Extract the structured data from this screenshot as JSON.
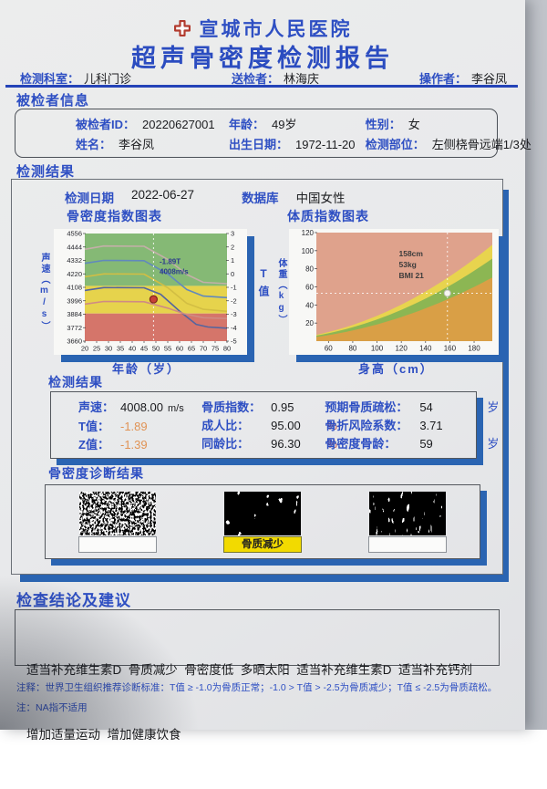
{
  "colors": {
    "accent_blue": "#2e4fc3",
    "shadow_blue": "#2a64b2",
    "highlight_yellow": "#f2da00",
    "alert_orange": "#e09355",
    "percent_red": "#b5342c",
    "logo_red": "#b23b2e"
  },
  "header": {
    "hospital": "宣城市人民医院",
    "title": "超声骨密度检测报告",
    "department_label": "检测科室：",
    "department": "儿科门诊",
    "sender_label": "送检者：",
    "sender": "林海庆",
    "operator_label": "操作者：",
    "operator": "李谷凤"
  },
  "patient": {
    "section_title": "被检者信息",
    "fields": [
      {
        "label": "被检者ID：",
        "value": "20220627001"
      },
      {
        "label": "年龄：",
        "value": "49岁"
      },
      {
        "label": "性别：",
        "value": "女"
      },
      {
        "label": "姓名：",
        "value": "李谷凤"
      },
      {
        "label": "出生日期：",
        "value": "1972-11-20"
      },
      {
        "label": "检测部位：",
        "value": "左侧桡骨远端1/3处"
      }
    ]
  },
  "results": {
    "section_title": "检测结果",
    "date_label": "检测日期",
    "date": "2022-06-27",
    "database_label": "数据库",
    "database": "中国女性"
  },
  "chart_data": [
    {
      "type": "line",
      "title": "骨密度指数图表",
      "xlabel": "年龄（岁）",
      "ylabel_left": "声速（m/s）",
      "ylabel_right": "T值",
      "xlim": [
        20,
        80
      ],
      "ylim": [
        3660,
        4556
      ],
      "xticks": [
        20,
        25,
        30,
        35,
        40,
        45,
        50,
        55,
        60,
        65,
        70,
        75,
        80
      ],
      "yticks": [
        4556,
        4444,
        4332,
        4220,
        4108,
        3996,
        3884,
        3772,
        3660
      ],
      "right_ticks": [
        3,
        2,
        1,
        0,
        -1,
        -2,
        -3,
        -4,
        -5
      ],
      "zones": [
        {
          "from": 4120,
          "to": 4556,
          "color": "#85b975"
        },
        {
          "from": 3890,
          "to": 4120,
          "color": "#e6d34c"
        },
        {
          "from": 3660,
          "to": 3890,
          "color": "#d5756a"
        }
      ],
      "series": [
        {
          "name": "+2SD",
          "color": "#c3afa8",
          "points": [
            [
              20,
              4425
            ],
            [
              28,
              4452
            ],
            [
              45,
              4450
            ],
            [
              55,
              4340
            ],
            [
              63,
              4215
            ],
            [
              70,
              4150
            ],
            [
              80,
              4138
            ]
          ]
        },
        {
          "name": "+1SD",
          "color": "#6189bd",
          "points": [
            [
              20,
              4308
            ],
            [
              28,
              4332
            ],
            [
              45,
              4330
            ],
            [
              55,
              4220
            ],
            [
              63,
              4090
            ],
            [
              70,
              4035
            ],
            [
              80,
              4022
            ]
          ]
        },
        {
          "name": "mean",
          "color": "#d2be43",
          "points": [
            [
              20,
              4195
            ],
            [
              28,
              4220
            ],
            [
              45,
              4218
            ],
            [
              55,
              4105
            ],
            [
              63,
              3975
            ],
            [
              70,
              3925
            ],
            [
              80,
              3908
            ]
          ]
        },
        {
          "name": "-1SD",
          "color": "#54659f",
          "points": [
            [
              20,
              4082
            ],
            [
              28,
              4106
            ],
            [
              45,
              4104
            ],
            [
              52,
              4050
            ],
            [
              60,
              3910
            ],
            [
              67,
              3800
            ],
            [
              72,
              3778
            ],
            [
              80,
              3768
            ]
          ]
        },
        {
          "name": "-2SD",
          "color": "#cf8b84",
          "points": [
            [
              20,
              3968
            ],
            [
              28,
              3990
            ],
            [
              45,
              3988
            ],
            [
              55,
              3935
            ],
            [
              62,
              3888
            ],
            [
              70,
              3855
            ],
            [
              80,
              3848
            ]
          ]
        }
      ],
      "point": {
        "x": 49,
        "y": 4008,
        "color": "#c84136"
      },
      "annotation": [
        "-1.89T",
        "4008m/s"
      ]
    },
    {
      "type": "area",
      "title": "体质指数图表",
      "xlabel": "身高（cm）",
      "ylabel": "体重（kg）",
      "xlim": [
        50,
        195
      ],
      "ylim": [
        0,
        120
      ],
      "xticks": [
        60,
        80,
        100,
        120,
        140,
        160,
        180
      ],
      "yticks": [
        20,
        40,
        60,
        80,
        100,
        120
      ],
      "background_color": "#dfa28c",
      "bmi_bands": [
        {
          "bmi": 28,
          "color": "#e8d44e"
        },
        {
          "bmi": 24,
          "color": "#8cb653"
        },
        {
          "bmi": 18.5,
          "color": "#d99f46"
        }
      ],
      "point": {
        "x": 158,
        "y": 53
      },
      "annotation": [
        "158cm",
        "53kg",
        "BMI 21"
      ]
    }
  ],
  "measurements": {
    "section_title": "检测结果",
    "rows": [
      {
        "label": "声速：",
        "value": "4008.00",
        "unit": "m/s"
      },
      {
        "label": "T值：",
        "value": "-1.89",
        "unit": ""
      },
      {
        "label": "Z值：",
        "value": "-1.39",
        "unit": ""
      },
      {
        "label": "骨质指数：",
        "value": "0.95",
        "unit": ""
      },
      {
        "label": "成人比：",
        "value": "95.00",
        "unit": "%"
      },
      {
        "label": "同龄比：",
        "value": "96.30",
        "unit": "%"
      },
      {
        "label": "预期骨质疏松：",
        "value": "54",
        "unit": "岁"
      },
      {
        "label": "骨折风险系数：",
        "value": "3.71",
        "unit": ""
      },
      {
        "label": "骨密度骨龄：",
        "value": "59",
        "unit": "岁"
      }
    ]
  },
  "diagnosis": {
    "section_title": "骨密度诊断结果",
    "items": [
      {
        "label": "",
        "highlighted": false
      },
      {
        "label": "骨质减少",
        "highlighted": true
      },
      {
        "label": "",
        "highlighted": false
      }
    ]
  },
  "conclusion": {
    "section_title": "检查结论及建议",
    "line1": "适当补充维生素D  骨质减少  骨密度低  多晒太阳  适当补充维生素D  适当补充钙剂",
    "line2": "增加适量运动  增加健康饮食"
  },
  "footnotes": {
    "note1": "注释：世界卫生组织推荐诊断标准：T值 ≥ -1.0为骨质正常；-1.0 > T值 > -2.5为骨质减少；T值 ≤ -2.5为骨质疏松。",
    "note2": "注：NA指不适用"
  }
}
